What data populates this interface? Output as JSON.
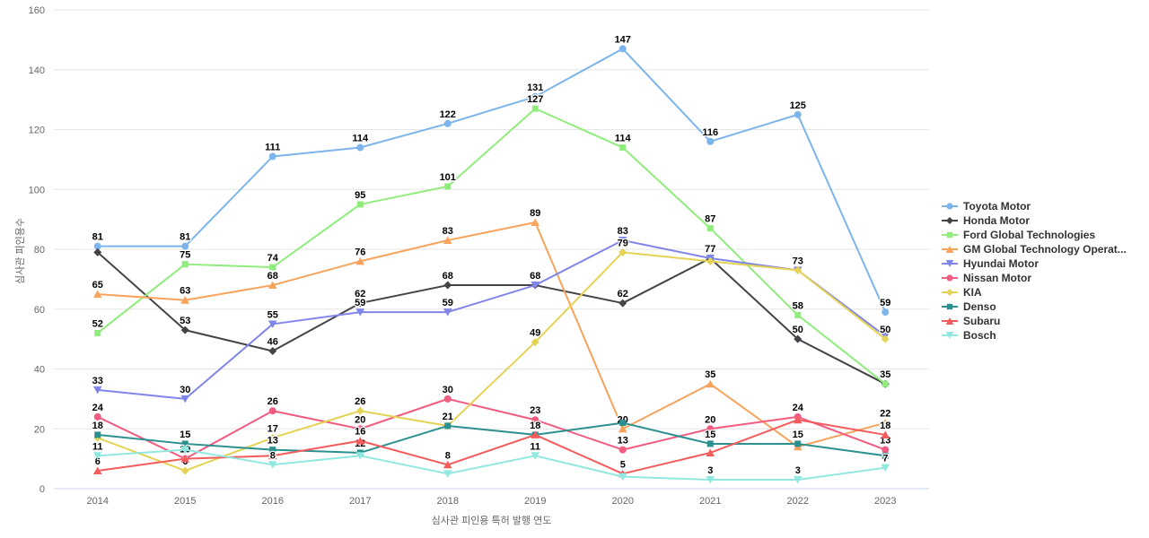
{
  "chart_data": {
    "type": "line",
    "title": "",
    "xlabel": "심사관 피인용 특허 발행 연도",
    "ylabel": "심사관 피인용수",
    "x_categories": [
      "2014",
      "2015",
      "2016",
      "2017",
      "2018",
      "2019",
      "2020",
      "2021",
      "2022",
      "2023"
    ],
    "y_ticks": [
      0,
      20,
      40,
      60,
      80,
      100,
      120,
      140,
      160
    ],
    "ylim": [
      0,
      160
    ],
    "grid": true,
    "legend_position": "right",
    "gridline_color": "#e6e6e6",
    "axis_line_color": "#ccd6eb",
    "tick_label_color": "#666666",
    "data_label_color": "#000000",
    "series": [
      {
        "name": "Toyota Motor",
        "color": "#7cb5ec",
        "marker": "circle",
        "values": [
          81,
          81,
          111,
          114,
          122,
          131,
          147,
          116,
          125,
          59
        ],
        "hidden_labels": []
      },
      {
        "name": "Honda Motor",
        "color": "#434348",
        "marker": "diamond",
        "values": [
          79,
          53,
          46,
          62,
          68,
          68,
          62,
          77,
          50,
          35
        ],
        "hidden_labels": [
          0,
          9
        ]
      },
      {
        "name": "Ford Global Technologies",
        "color": "#90ed7d",
        "marker": "square",
        "values": [
          52,
          75,
          74,
          95,
          101,
          127,
          114,
          87,
          58,
          35
        ],
        "hidden_labels": []
      },
      {
        "name": "GM Global Technology Operat...",
        "color": "#f7a35c",
        "marker": "triangle",
        "values": [
          65,
          63,
          68,
          76,
          83,
          89,
          20,
          35,
          14,
          22
        ],
        "hidden_labels": [
          8
        ]
      },
      {
        "name": "Hyundai Motor",
        "color": "#8085e9",
        "marker": "triangle-down",
        "values": [
          33,
          30,
          55,
          59,
          59,
          68,
          83,
          77,
          73,
          51
        ],
        "hidden_labels": [
          5,
          7,
          8,
          9
        ]
      },
      {
        "name": "Nissan Motor",
        "color": "#f15c80",
        "marker": "circle",
        "values": [
          24,
          10,
          26,
          20,
          30,
          23,
          13,
          20,
          24,
          13
        ],
        "hidden_labels": [
          1
        ]
      },
      {
        "name": "KIA",
        "color": "#e4d354",
        "marker": "diamond",
        "values": [
          17,
          6,
          17,
          26,
          21,
          49,
          79,
          76,
          73,
          50
        ],
        "hidden_labels": [
          0,
          7
        ]
      },
      {
        "name": "Denso",
        "color": "#2b908f",
        "marker": "square",
        "values": [
          18,
          15,
          13,
          12,
          21,
          18,
          22,
          15,
          15,
          11
        ],
        "hidden_labels": [
          4,
          5,
          6,
          9
        ]
      },
      {
        "name": "Subaru",
        "color": "#f45b5b",
        "marker": "triangle",
        "values": [
          6,
          10,
          11,
          16,
          8,
          18,
          5,
          12,
          23,
          18
        ],
        "hidden_labels": [
          2,
          7,
          8
        ]
      },
      {
        "name": "Bosch",
        "color": "#91e8e1",
        "marker": "triangle-down",
        "values": [
          11,
          13,
          8,
          11,
          5,
          11,
          4,
          3,
          3,
          7
        ],
        "hidden_labels": [
          1,
          3,
          4,
          6
        ]
      }
    ]
  }
}
